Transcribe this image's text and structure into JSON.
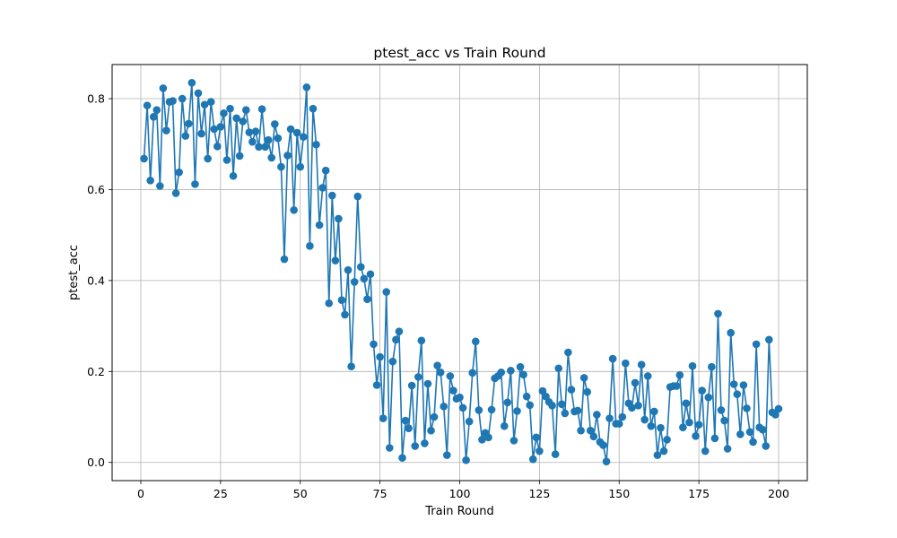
{
  "chart_data": {
    "type": "line",
    "title": "ptest_acc vs Train Round",
    "xlabel": "Train Round",
    "ylabel": "ptest_acc",
    "xlim": [
      -9,
      209
    ],
    "ylim": [
      -0.04,
      0.875
    ],
    "x_ticks": [
      0,
      25,
      50,
      75,
      100,
      125,
      150,
      175,
      200
    ],
    "x_tick_labels": [
      "0",
      "25",
      "50",
      "75",
      "100",
      "125",
      "150",
      "175",
      "200"
    ],
    "y_ticks": [
      0.0,
      0.2,
      0.4,
      0.6,
      0.8
    ],
    "y_tick_labels": [
      "0.0",
      "0.2",
      "0.4",
      "0.6",
      "0.8"
    ],
    "grid": true,
    "marker": "circle",
    "color": "#1f77b4",
    "series": [
      {
        "x": [
          1,
          2,
          3,
          4,
          5,
          6,
          7,
          8,
          9,
          10,
          11,
          12,
          13,
          14,
          15,
          16,
          17,
          18,
          19,
          20,
          21,
          22,
          23,
          24,
          25,
          26,
          27,
          28,
          29,
          30,
          31,
          32,
          33,
          34,
          35,
          36,
          37,
          38,
          39,
          40,
          41,
          42,
          43,
          44,
          45,
          46,
          47,
          48,
          49,
          50,
          51,
          52,
          53,
          54,
          55,
          56,
          57,
          58,
          59,
          60,
          61,
          62,
          63,
          64,
          65,
          66,
          67,
          68,
          69,
          70,
          71,
          72,
          73,
          74,
          75,
          76,
          77,
          78,
          79,
          80,
          81,
          82,
          83,
          84,
          85,
          86,
          87,
          88,
          89,
          90,
          91,
          92,
          93,
          94,
          95,
          96,
          97,
          98,
          99,
          100,
          101,
          102,
          103,
          104,
          105,
          106,
          107,
          108,
          109,
          110,
          111,
          112,
          113,
          114,
          115,
          116,
          117,
          118,
          119,
          120,
          121,
          122,
          123,
          124,
          125,
          126,
          127,
          128,
          129,
          130,
          131,
          132,
          133,
          134,
          135,
          136,
          137,
          138,
          139,
          140,
          141,
          142,
          143,
          144,
          145,
          146,
          147,
          148,
          149,
          150,
          151,
          152,
          153,
          154,
          155,
          156,
          157,
          158,
          159,
          160,
          161,
          162,
          163,
          164,
          165,
          166,
          167,
          168,
          169,
          170,
          171,
          172,
          173,
          174,
          175,
          176,
          177,
          178,
          179,
          180,
          181,
          182,
          183,
          184,
          185,
          186,
          187,
          188,
          189,
          190,
          191,
          192,
          193,
          194,
          195,
          196,
          197,
          198,
          199,
          200
        ],
        "y": [
          0.668,
          0.785,
          0.62,
          0.76,
          0.775,
          0.608,
          0.823,
          0.73,
          0.793,
          0.795,
          0.592,
          0.638,
          0.8,
          0.718,
          0.745,
          0.835,
          0.612,
          0.812,
          0.723,
          0.787,
          0.668,
          0.793,
          0.733,
          0.695,
          0.738,
          0.768,
          0.665,
          0.778,
          0.63,
          0.757,
          0.674,
          0.75,
          0.775,
          0.726,
          0.705,
          0.728,
          0.694,
          0.777,
          0.694,
          0.709,
          0.67,
          0.744,
          0.713,
          0.65,
          0.447,
          0.675,
          0.733,
          0.555,
          0.725,
          0.65,
          0.716,
          0.825,
          0.476,
          0.778,
          0.699,
          0.522,
          0.604,
          0.642,
          0.35,
          0.587,
          0.444,
          0.536,
          0.357,
          0.325,
          0.423,
          0.211,
          0.397,
          0.585,
          0.43,
          0.404,
          0.359,
          0.414,
          0.26,
          0.17,
          0.232,
          0.097,
          0.375,
          0.032,
          0.222,
          0.27,
          0.288,
          0.01,
          0.092,
          0.075,
          0.169,
          0.036,
          0.188,
          0.268,
          0.042,
          0.173,
          0.07,
          0.1,
          0.213,
          0.198,
          0.123,
          0.016,
          0.19,
          0.158,
          0.14,
          0.143,
          0.12,
          0.005,
          0.09,
          0.197,
          0.266,
          0.115,
          0.05,
          0.065,
          0.055,
          0.116,
          0.185,
          0.19,
          0.198,
          0.08,
          0.132,
          0.202,
          0.048,
          0.113,
          0.21,
          0.193,
          0.145,
          0.126,
          0.007,
          0.055,
          0.025,
          0.157,
          0.145,
          0.133,
          0.125,
          0.018,
          0.207,
          0.128,
          0.108,
          0.242,
          0.16,
          0.112,
          0.114,
          0.07,
          0.186,
          0.155,
          0.07,
          0.057,
          0.105,
          0.045,
          0.038,
          0.002,
          0.097,
          0.228,
          0.085,
          0.085,
          0.1,
          0.218,
          0.13,
          0.12,
          0.175,
          0.125,
          0.215,
          0.094,
          0.19,
          0.08,
          0.112,
          0.016,
          0.076,
          0.025,
          0.05,
          0.166,
          0.168,
          0.168,
          0.192,
          0.077,
          0.13,
          0.088,
          0.212,
          0.058,
          0.083,
          0.158,
          0.025,
          0.143,
          0.21,
          0.053,
          0.327,
          0.115,
          0.092,
          0.03,
          0.285,
          0.172,
          0.15,
          0.062,
          0.17,
          0.119,
          0.067,
          0.045,
          0.26,
          0.077,
          0.072,
          0.036,
          0.27,
          0.11,
          0.105,
          0.118
        ]
      }
    ]
  }
}
